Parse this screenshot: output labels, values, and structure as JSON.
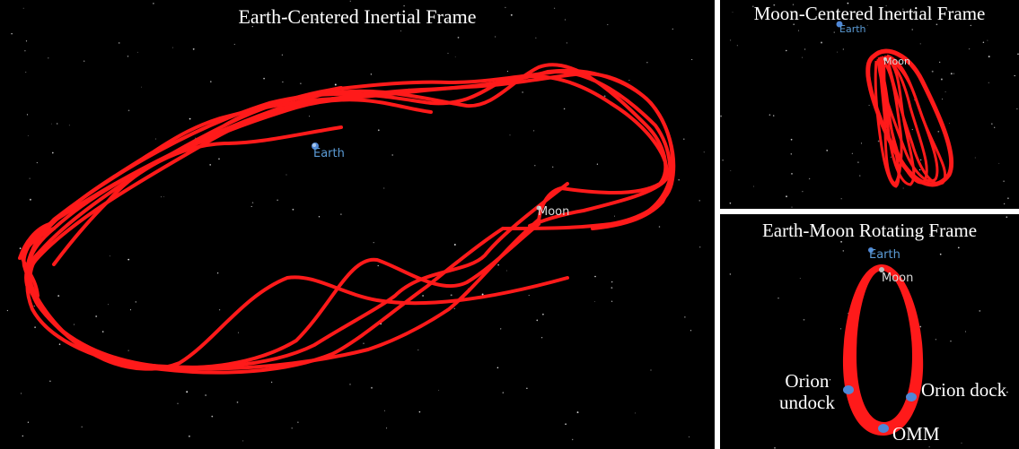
{
  "colors": {
    "background": "#000000",
    "trajectory": "#ff1a1a",
    "earth_label": "#5b9bd5",
    "moon_label": "#d9d9d9",
    "event_marker": "#4f87d6",
    "title_text": "#ffffff"
  },
  "panels": {
    "eci": {
      "title": "Earth-Centered Inertial Frame",
      "earth_label": "Earth",
      "moon_label": "Moon"
    },
    "mci": {
      "title": "Moon-Centered Inertial Frame",
      "earth_label": "Earth",
      "moon_label": "Moon"
    },
    "emr": {
      "title": "Earth-Moon Rotating Frame",
      "earth_label": "Earth",
      "moon_label": "Moon",
      "events": {
        "orion_undock_line1": "Orion",
        "orion_undock_line2": "undock",
        "orion_dock": "Orion dock",
        "omm": "OMM"
      }
    }
  }
}
